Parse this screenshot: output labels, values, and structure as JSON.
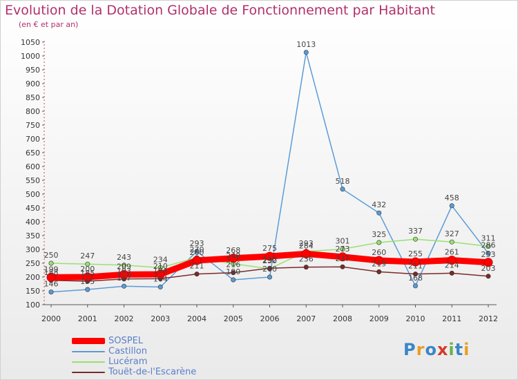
{
  "title": "Evolution de la Dotation Globale de Fonctionnement par Habitant",
  "subtitle": "(en € et par an)",
  "logo": "Proxiti",
  "chart_data": {
    "type": "line",
    "x": [
      "2000",
      "2001",
      "2002",
      "2003",
      "2004",
      "2005",
      "2006",
      "2007",
      "2008",
      "2009",
      "2010",
      "2011",
      "2012"
    ],
    "ylim": [
      100,
      1050
    ],
    "yticks": [
      100,
      150,
      200,
      250,
      300,
      350,
      400,
      450,
      500,
      550,
      600,
      650,
      700,
      750,
      800,
      850,
      900,
      950,
      1000,
      1050
    ],
    "grid": false,
    "legend": "bottom-left",
    "series": [
      {
        "name": "SOSPEL",
        "color": "#ff0000",
        "values": [
          199,
          200,
          209,
          210,
          260,
          268,
          275,
          284,
          273,
          260,
          255,
          261,
          253
        ]
      },
      {
        "name": "Castillon",
        "color": "#5b9bd5",
        "values": [
          146,
          155,
          167,
          164,
          293,
          190,
          200,
          1013,
          518,
          432,
          168,
          458,
          286
        ]
      },
      {
        "name": "Lucéram",
        "color": "#99e072",
        "values": [
          250,
          247,
          243,
          234,
          270,
          248,
          230,
          293,
          301,
          325,
          337,
          327,
          311
        ]
      },
      {
        "name": "Touët-de-l'Escarène",
        "color": "#7a2a2a",
        "values": [
          188,
          185,
          193,
          194,
          211,
          216,
          232,
          236,
          237,
          219,
          211,
          214,
          203
        ]
      }
    ]
  }
}
